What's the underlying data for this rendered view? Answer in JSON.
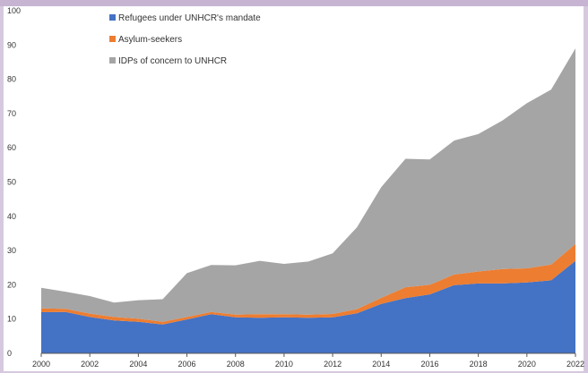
{
  "chart_data": {
    "type": "area",
    "stacked": true,
    "x": [
      2000,
      2001,
      2002,
      2003,
      2004,
      2005,
      2006,
      2007,
      2008,
      2009,
      2010,
      2011,
      2012,
      2013,
      2014,
      2015,
      2016,
      2017,
      2018,
      2019,
      2020,
      2021,
      2022
    ],
    "series": [
      {
        "name": "Refugees under UNHCR's mandate",
        "color": "#4472c4",
        "values": [
          12,
          12.1,
          10.6,
          9.6,
          9.2,
          8.4,
          9.9,
          11.4,
          10.5,
          10.4,
          10.5,
          10.4,
          10.5,
          11.7,
          14.4,
          16.1,
          17.2,
          19.9,
          20.4,
          20.4,
          20.7,
          21.3,
          27
        ]
      },
      {
        "name": "Asylum-seekers",
        "color": "#ed7d31",
        "values": [
          1.1,
          0.9,
          1.0,
          1.0,
          0.9,
          0.8,
          0.7,
          0.7,
          0.8,
          1.0,
          0.9,
          0.9,
          1.0,
          1.2,
          1.8,
          3.2,
          2.8,
          3.1,
          3.5,
          4.2,
          4.1,
          4.6,
          4.9
        ]
      },
      {
        "name": "IDPs of concern to UNHCR",
        "color": "#a5a5a5",
        "values": [
          6.0,
          5.0,
          5.1,
          4.2,
          5.4,
          6.6,
          12.8,
          13.7,
          14.4,
          15.6,
          14.7,
          15.5,
          17.7,
          23.9,
          32.3,
          37.5,
          36.6,
          39.1,
          40.1,
          43.4,
          48.2,
          51.1,
          57.1
        ]
      }
    ],
    "ylim": [
      0,
      100
    ],
    "yticks": [
      0,
      10,
      20,
      30,
      40,
      50,
      60,
      70,
      80,
      90,
      100
    ],
    "xticks": [
      "2000",
      "2002",
      "2004",
      "2006",
      "2008",
      "2010",
      "2012",
      "2014",
      "2016",
      "2018",
      "2020",
      "2022"
    ],
    "legend_placement": "top-left",
    "grid": false
  }
}
